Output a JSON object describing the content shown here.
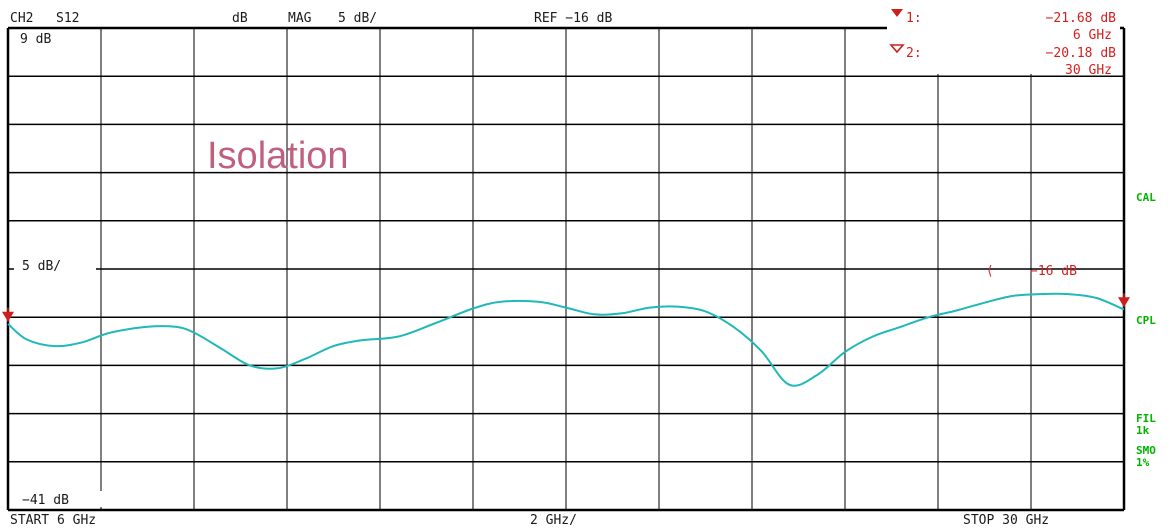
{
  "header": {
    "channel": "CH2",
    "parameter": "S12",
    "format": "dB",
    "mag": "MAG",
    "scale": "5 dB/",
    "ref": "REF −16 dB"
  },
  "markers": [
    {
      "id": "1:",
      "value": "−21.68 dB",
      "freq": "6 GHz"
    },
    {
      "id": "2:",
      "value": "−20.18 dB",
      "freq": "30 GHz"
    }
  ],
  "side_labels": [
    "CAL",
    "CPL",
    "FIL",
    "1k",
    "SMO",
    "1%"
  ],
  "colors": {
    "trace": "#20b8b8",
    "marker": "#cc1f1f",
    "status": "#00b400",
    "overlay": "#c0607f",
    "grid": "#000000"
  },
  "chart_data": {
    "type": "line",
    "title": "Isolation",
    "top_label": "9 dB",
    "bottom_label": "−41 dB",
    "scale_label": "5 dB/",
    "ref_label": "−16 dB",
    "ref_prefix": "⟨",
    "ylim": [
      -41,
      9
    ],
    "y_unit": "dB",
    "x_unit": "GHz",
    "xlim": [
      6,
      30
    ],
    "x_start_label": "START 6 GHz",
    "x_div_label": "2 GHz/",
    "x_stop_label": "STOP 30 GHz",
    "grid": true,
    "series": [
      {
        "name": "S12",
        "x": [
          6.0,
          6.4,
          7.0,
          7.6,
          8.2,
          9.0,
          9.6,
          10.0,
          10.6,
          11.2,
          11.8,
          12.4,
          13.0,
          13.6,
          14.4,
          15.2,
          16.0,
          16.6,
          17.4,
          18.0,
          18.6,
          19.2,
          19.8,
          20.4,
          21.0,
          21.6,
          22.2,
          22.8,
          23.4,
          24.0,
          24.6,
          25.2,
          25.8,
          26.4,
          27.0,
          27.6,
          28.2,
          28.8,
          29.4,
          30.0
        ],
        "y": [
          -21.7,
          -23.3,
          -24.0,
          -23.6,
          -22.6,
          -22.0,
          -22.0,
          -22.6,
          -24.3,
          -26.0,
          -26.3,
          -25.3,
          -24.0,
          -23.4,
          -23.0,
          -21.6,
          -20.1,
          -19.4,
          -19.4,
          -20.0,
          -20.7,
          -20.6,
          -20.0,
          -19.9,
          -20.4,
          -22.0,
          -24.5,
          -28.0,
          -27.0,
          -24.6,
          -23.0,
          -22.0,
          -21.0,
          -20.3,
          -19.5,
          -18.8,
          -18.6,
          -18.6,
          -19.0,
          -20.2
        ]
      }
    ],
    "marker_points": [
      {
        "label": "1",
        "x": 6,
        "y": -21.68
      },
      {
        "label": "2",
        "x": 30,
        "y": -20.18
      }
    ]
  }
}
